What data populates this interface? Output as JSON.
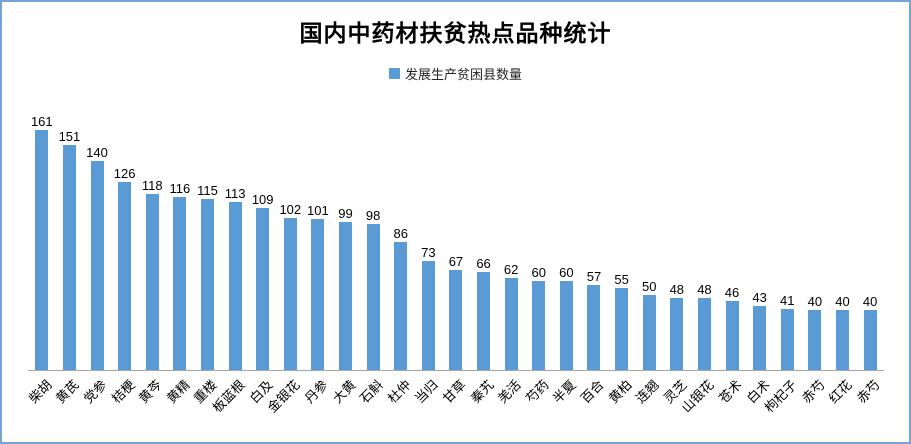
{
  "window": {
    "background": "#ffffff",
    "border_color": "#74a3d4"
  },
  "chart_data": {
    "type": "bar",
    "title": "国内中药材扶贫热点品种统计",
    "legend": [
      {
        "label": "发展生产贫困县数量",
        "color": "#5b9bd5"
      }
    ],
    "legend_position": "top",
    "grid": false,
    "data_labels": true,
    "bar_color": "#5b9bd5",
    "axis_color": "#a6a6a6",
    "xlabel": "",
    "ylabel": "",
    "ylim": [
      0,
      170
    ],
    "categories": [
      "柴胡",
      "黄芪",
      "党参",
      "桔梗",
      "黄芩",
      "黄精",
      "重楼",
      "板蓝根",
      "白及",
      "金银花",
      "丹参",
      "大黄",
      "石斛",
      "杜仲",
      "当归",
      "甘草",
      "秦艽",
      "羌活",
      "芍药",
      "半夏",
      "百合",
      "黄柏",
      "连翘",
      "灵芝",
      "山银花",
      "苍术",
      "白术",
      "枸杞子",
      "赤芍",
      "红花",
      "赤芍"
    ],
    "values": [
      161,
      151,
      140,
      126,
      118,
      116,
      115,
      113,
      109,
      102,
      101,
      99,
      98,
      86,
      73,
      67,
      66,
      62,
      60,
      60,
      57,
      55,
      50,
      48,
      48,
      46,
      43,
      41,
      40,
      40,
      40
    ]
  }
}
